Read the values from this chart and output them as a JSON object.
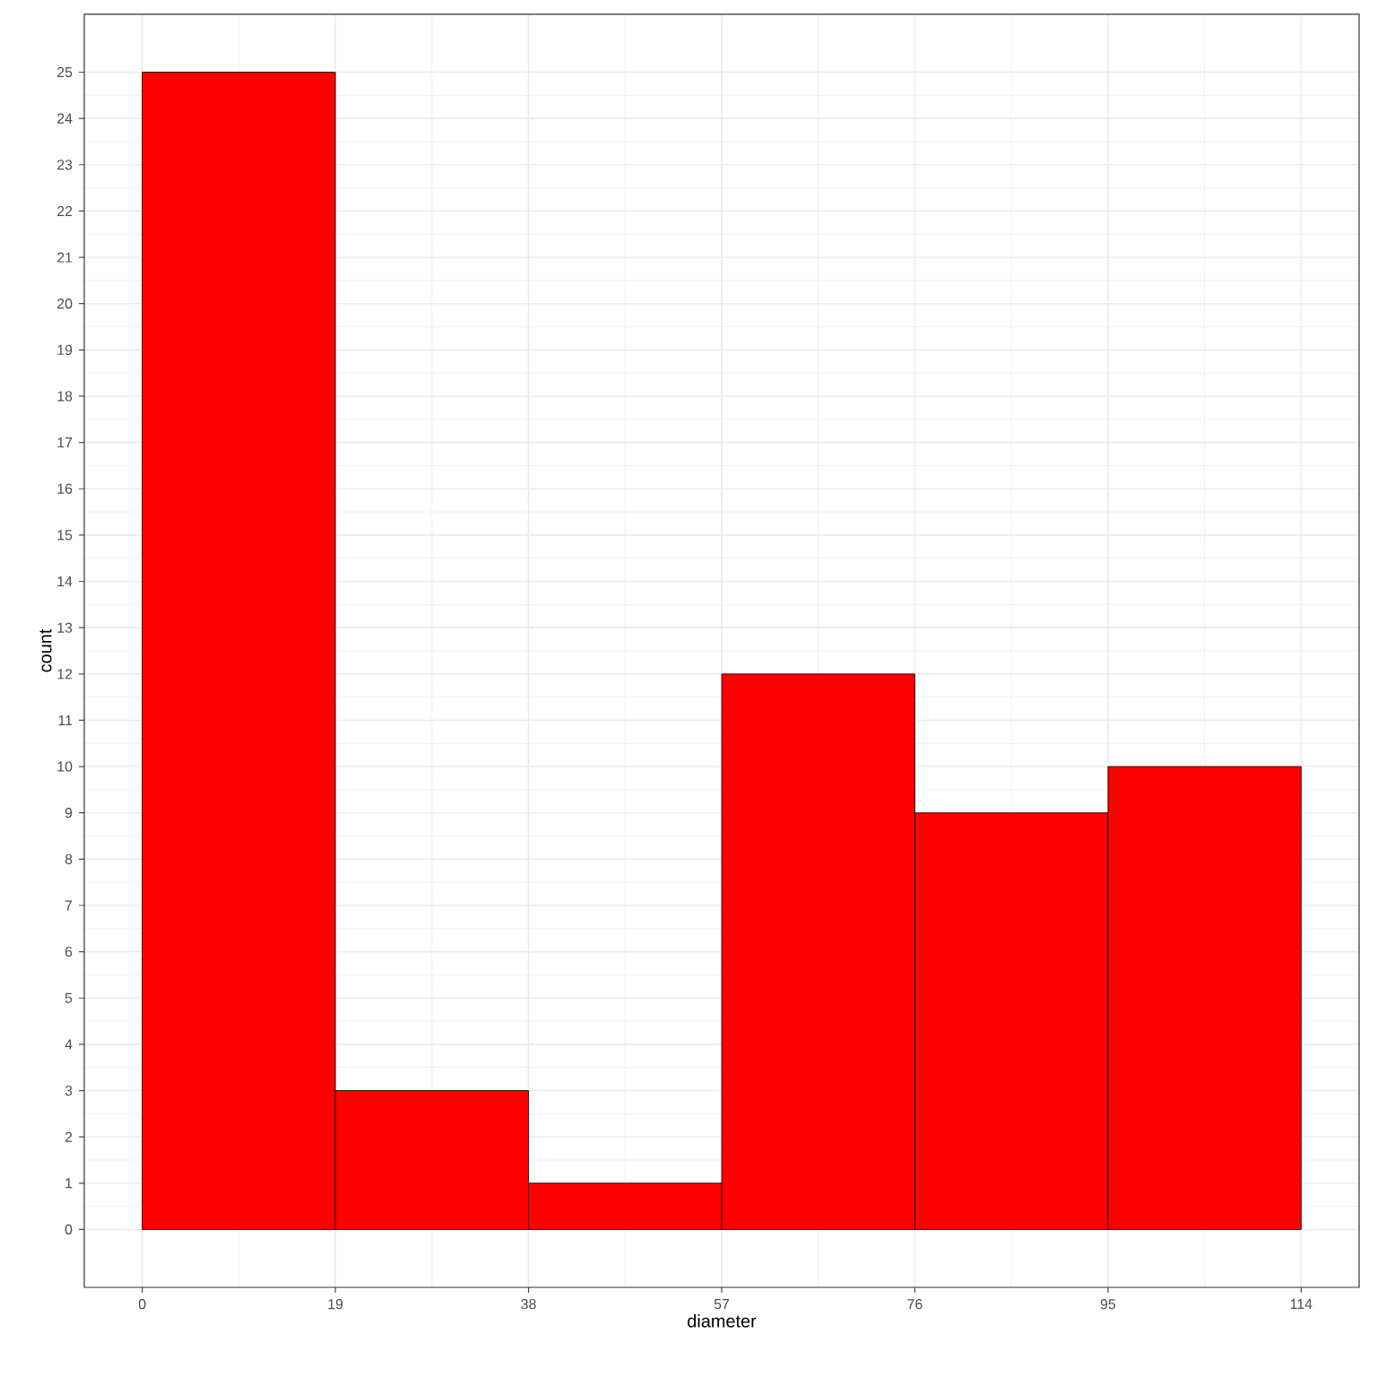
{
  "chart_data": {
    "type": "histogram",
    "xlabel": "diameter",
    "ylabel": "count",
    "bins": [
      0,
      19,
      38,
      57,
      76,
      95,
      114
    ],
    "values": [
      25,
      3,
      1,
      12,
      9,
      10
    ],
    "color": "#ff0000",
    "xlim": [
      -5.7,
      119.7
    ],
    "ylim": [
      -1.25,
      26.25
    ],
    "xticks": [
      0,
      19,
      38,
      57,
      76,
      95,
      114
    ],
    "yticks": [
      0,
      1,
      2,
      3,
      4,
      5,
      6,
      7,
      8,
      9,
      10,
      11,
      12,
      13,
      14,
      15,
      16,
      17,
      18,
      19,
      20,
      21,
      22,
      23,
      24,
      25
    ],
    "grid": true
  }
}
